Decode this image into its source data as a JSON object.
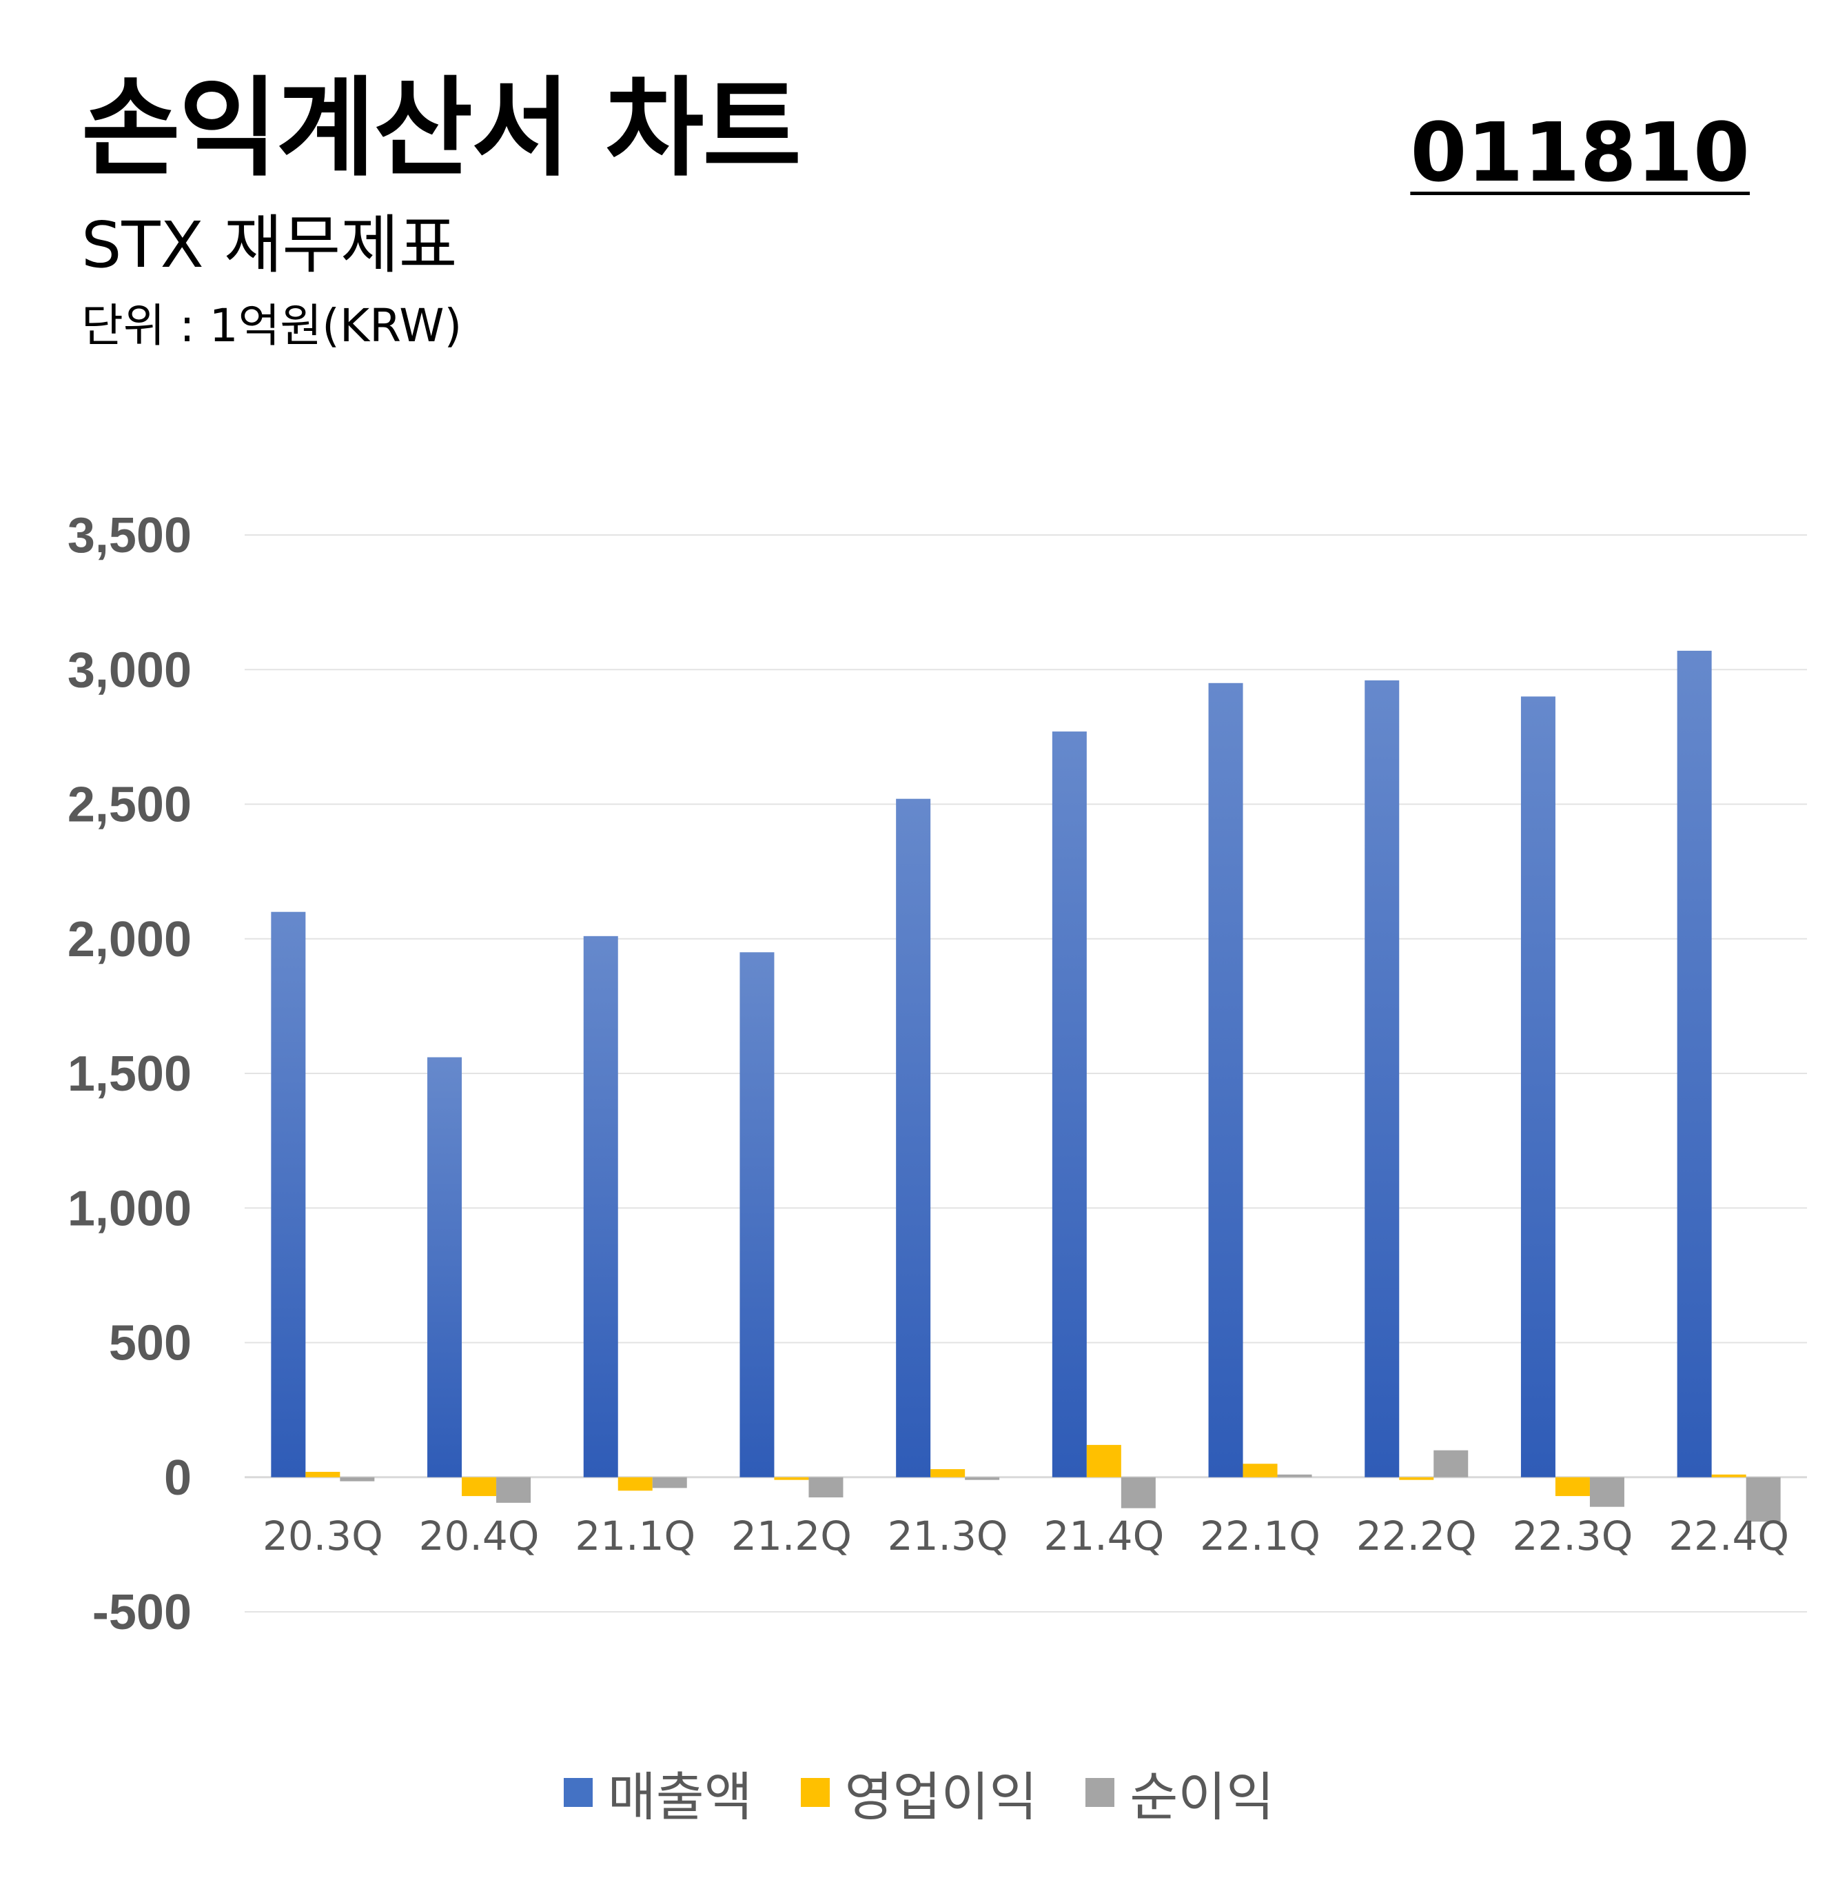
{
  "header": {
    "title": "손익계산서 차트",
    "code": "011810",
    "subtitle": "STX 재무제표",
    "unit": "단위 : 1억원(KRW)"
  },
  "chart_data": {
    "type": "bar",
    "categories": [
      "20.3Q",
      "20.4Q",
      "21.1Q",
      "21.2Q",
      "21.3Q",
      "21.4Q",
      "22.1Q",
      "22.2Q",
      "22.3Q",
      "22.4Q"
    ],
    "series": [
      {
        "name": "매출액",
        "color": "#4472C4",
        "values": [
          2100,
          1560,
          2010,
          1950,
          2520,
          2770,
          2950,
          2960,
          2900,
          3070
        ]
      },
      {
        "name": "영업이익",
        "color": "#FFC000",
        "values": [
          20,
          -70,
          -50,
          -10,
          30,
          120,
          50,
          -10,
          -70,
          10
        ]
      },
      {
        "name": "순이익",
        "color": "#A5A5A5",
        "values": [
          -15,
          -95,
          -40,
          -75,
          -10,
          -115,
          10,
          100,
          -110,
          -165
        ]
      }
    ],
    "ylim": [
      -500,
      3500
    ],
    "yticks": [
      3500,
      3000,
      2500,
      2000,
      1500,
      1000,
      500,
      0,
      -500
    ],
    "ytick_labels": [
      "3,500",
      "3,000",
      "2,500",
      "2,000",
      "1,500",
      "1,000",
      "500",
      "0",
      "-500"
    ],
    "grid": true,
    "legend_position": "bottom"
  }
}
